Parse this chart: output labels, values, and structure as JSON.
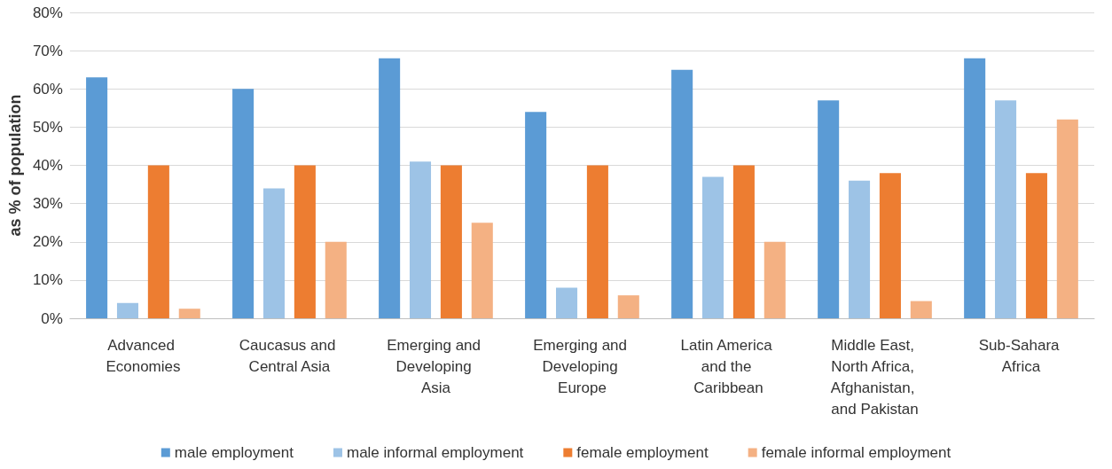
{
  "chart_data": {
    "type": "bar",
    "ylabel": "as % of population",
    "categories": [
      "Advanced Economies",
      "Caucasus and Central Asia",
      "Emerging and Developing Asia",
      "Emerging and Developing Europe",
      "Latin America and the Caribbean",
      "Middle East, North Africa, Afghanistan, and Pakistan",
      "Sub-Sahara Africa"
    ],
    "series": [
      {
        "name": "male employment",
        "color": "#5b9bd5",
        "values": [
          63,
          60,
          68,
          54,
          65,
          57,
          68
        ]
      },
      {
        "name": "male informal employment",
        "color": "#9dc3e6",
        "values": [
          4,
          34,
          41,
          8,
          37,
          36,
          57
        ]
      },
      {
        "name": "female employment",
        "color": "#ed7d31",
        "values": [
          40,
          40,
          40,
          40,
          40,
          38,
          38
        ]
      },
      {
        "name": "female informal employment",
        "color": "#f4b183",
        "values": [
          2.5,
          20,
          25,
          6,
          20,
          4.5,
          52
        ]
      }
    ],
    "ylim": [
      0,
      80
    ],
    "yticks": [
      {
        "value": 0,
        "label": "0%"
      },
      {
        "value": 10,
        "label": "10%"
      },
      {
        "value": 20,
        "label": "20%"
      },
      {
        "value": 30,
        "label": "30%"
      },
      {
        "value": 40,
        "label": "40%"
      },
      {
        "value": 50,
        "label": "50%"
      },
      {
        "value": 60,
        "label": "60%"
      },
      {
        "value": 70,
        "label": "70%"
      },
      {
        "value": 80,
        "label": "80%"
      }
    ],
    "grid": true,
    "legend": "bottom"
  }
}
